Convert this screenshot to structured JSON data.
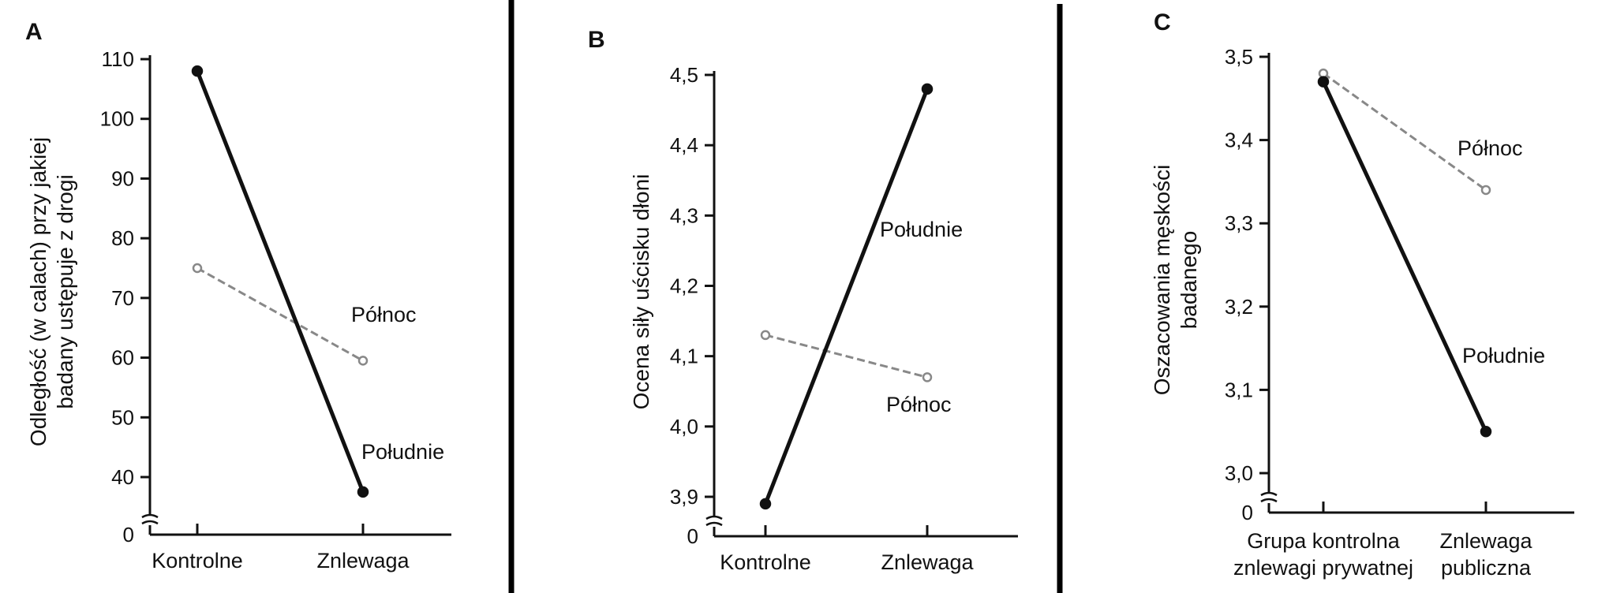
{
  "chart_data": [
    {
      "type": "line",
      "panel_label": "A",
      "ylabel": [
        "Odległość (w calach) przy jakiej",
        "badany ustępuje z drogi"
      ],
      "categories": [
        "Kontrolne",
        "Znlewaga"
      ],
      "yticks": [
        "110",
        "100",
        "90",
        "80",
        "70",
        "60",
        "50",
        "40",
        "0"
      ],
      "ylim": [
        40,
        110
      ],
      "axis_break": true,
      "series": [
        {
          "name": "Północ",
          "values": [
            75,
            59.5
          ],
          "style": "dashed",
          "color": "#888888"
        },
        {
          "name": "Południe",
          "values": [
            108,
            37.5
          ],
          "style": "solid",
          "color": "#111111"
        }
      ]
    },
    {
      "type": "line",
      "panel_label": "B",
      "ylabel": [
        "Ocena siły uścisku dłoni"
      ],
      "categories": [
        "Kontrolne",
        "Znlewaga"
      ],
      "yticks": [
        "4,5",
        "4,4",
        "4,3",
        "4,2",
        "4,1",
        "4,0",
        "3,9",
        "0"
      ],
      "ylim": [
        3.9,
        4.5
      ],
      "axis_break": true,
      "series": [
        {
          "name": "Północ",
          "values": [
            4.13,
            4.07
          ],
          "style": "dashed",
          "color": "#888888"
        },
        {
          "name": "Południe",
          "values": [
            3.89,
            4.48
          ],
          "style": "solid",
          "color": "#111111"
        }
      ]
    },
    {
      "type": "line",
      "panel_label": "C",
      "ylabel": [
        "Oszacowania męskości",
        "badanego"
      ],
      "categories": [
        "Grupa kontrolna znlewagi prywatnej",
        "Znlewaga publiczna"
      ],
      "category_lines": [
        [
          "Grupa kontrolna",
          "znlewagi prywatnej"
        ],
        [
          "Znlewaga",
          "publiczna"
        ]
      ],
      "yticks": [
        "3,5",
        "3,4",
        "3,3",
        "3,2",
        "3,1",
        "3,0",
        "0"
      ],
      "ylim": [
        3.0,
        3.5
      ],
      "axis_break": true,
      "series": [
        {
          "name": "Północ",
          "values": [
            3.48,
            3.34
          ],
          "style": "dashed",
          "color": "#888888"
        },
        {
          "name": "Południe",
          "values": [
            3.47,
            3.05
          ],
          "style": "solid",
          "color": "#111111"
        }
      ]
    }
  ]
}
